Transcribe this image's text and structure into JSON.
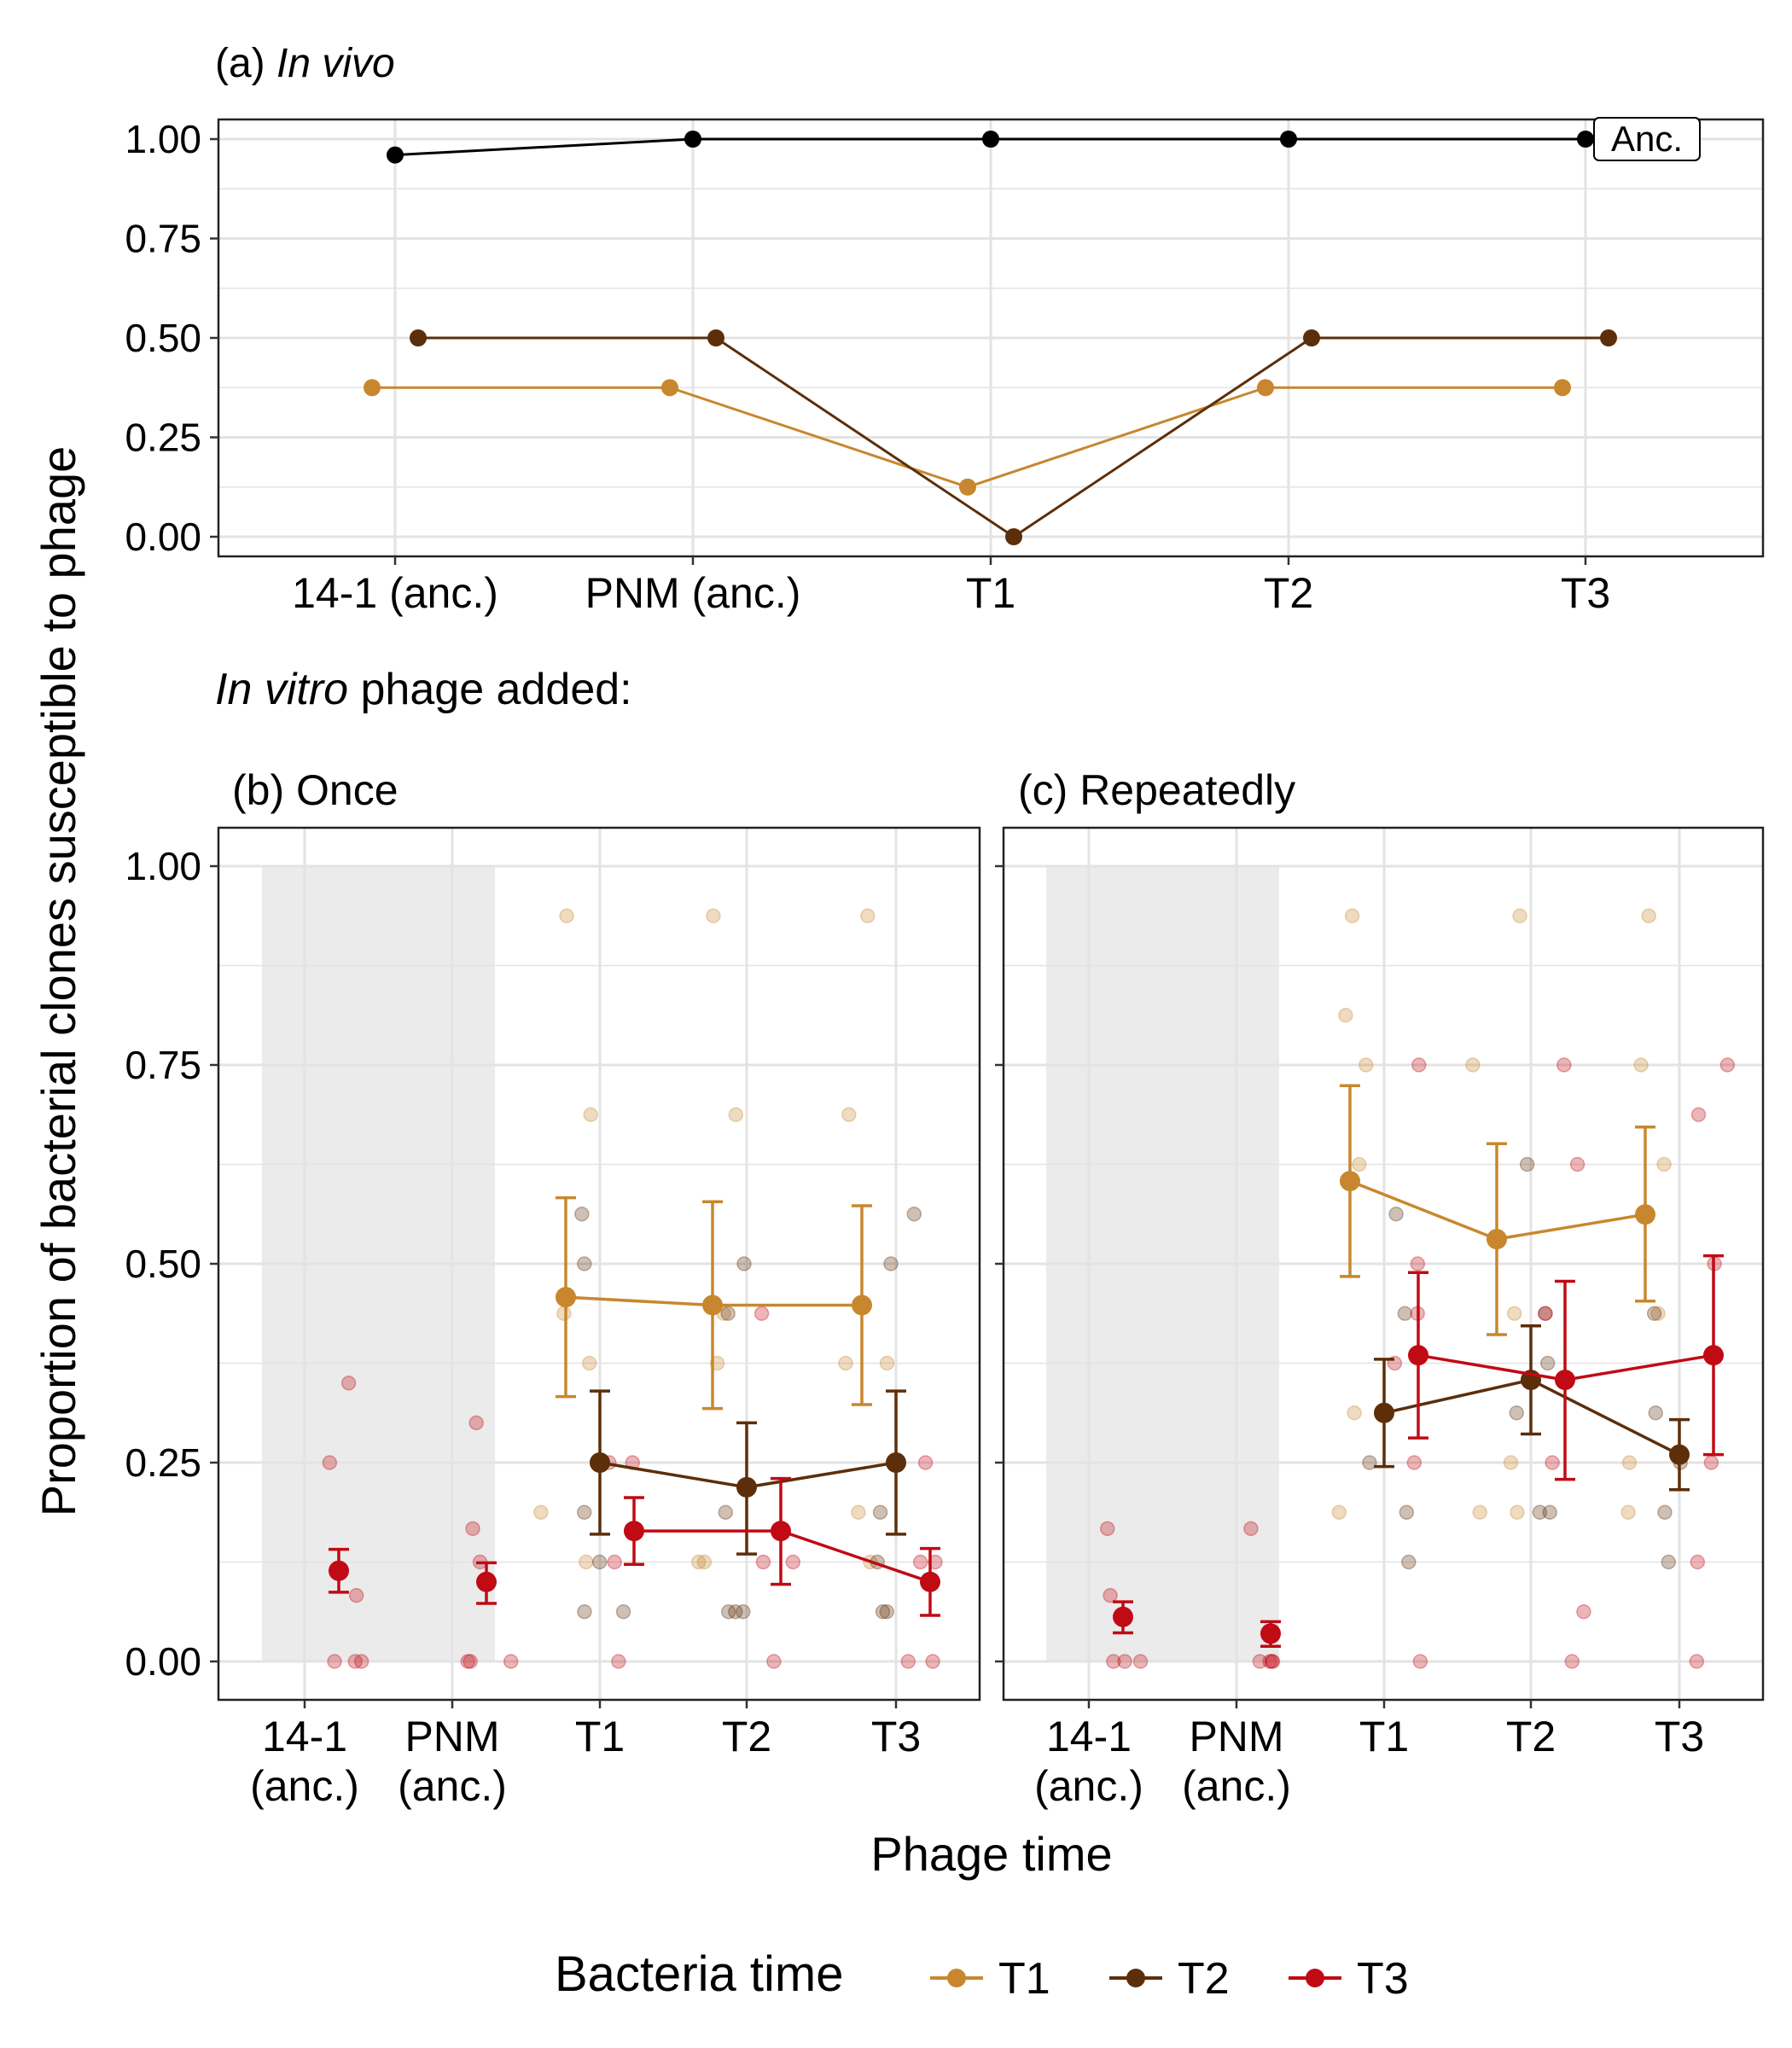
{
  "y_axis_label": "Proportion of bacterial clones susceptible to phage",
  "x_axis_label": "Phage time",
  "in_vitro_heading_italic": "In vitro",
  "in_vitro_heading_rest": " phage added:",
  "legend": {
    "title": "Bacteria time",
    "items": [
      {
        "label": "T1",
        "color": "#C8872E"
      },
      {
        "label": "T2",
        "color": "#5C2E0A"
      },
      {
        "label": "T3",
        "color": "#C00A14"
      }
    ]
  },
  "colors": {
    "anc": "#000000",
    "T1": "#C8872E",
    "T2": "#5C2E0A",
    "T3": "#C00A14",
    "shade": "#EBEBEB",
    "grid": "#E3E3E3"
  },
  "chart_data": [
    {
      "panel": "a",
      "type": "line",
      "title_prefix": "(a) ",
      "title_italic": "In vivo",
      "categories": [
        "14-1 (anc.)",
        "PNM (anc.)",
        "T1",
        "T2",
        "T3"
      ],
      "ylim": [
        0,
        1
      ],
      "yticks": [
        "0.00",
        "0.25",
        "0.50",
        "0.75",
        "1.00"
      ],
      "series": [
        {
          "key": "anc",
          "values": [
            0.96,
            1.0,
            1.0,
            1.0,
            1.0
          ],
          "end_label": "Anc."
        },
        {
          "key": "T1",
          "values": [
            0.375,
            0.375,
            0.125,
            0.375,
            0.375
          ]
        },
        {
          "key": "T2",
          "values": [
            0.5,
            0.5,
            0.0,
            0.5,
            0.5
          ]
        }
      ]
    },
    {
      "panel": "b",
      "type": "line",
      "title": "(b) Once",
      "categories": [
        "14-1\n(anc.)",
        "PNM\n(anc.)",
        "T1",
        "T2",
        "T3"
      ],
      "shaded_categories": [
        0,
        1
      ],
      "ylim": [
        0,
        1
      ],
      "yticks": [
        "0.00",
        "0.25",
        "0.50",
        "0.75",
        "1.00"
      ],
      "series": [
        {
          "key": "T1",
          "means": [
            null,
            null,
            0.458,
            0.448,
            0.448
          ],
          "lower": [
            null,
            null,
            0.333,
            0.318,
            0.323
          ],
          "upper": [
            null,
            null,
            0.583,
            0.578,
            0.573
          ],
          "points": [
            [],
            [],
            [
              0.9375,
              0.6875,
              0.4375,
              0.375,
              0.1875,
              0.125
            ],
            [
              0.9375,
              0.6875,
              0.4375,
              0.375,
              0.125,
              0.125
            ],
            [
              0.9375,
              0.6875,
              0.375,
              0.375,
              0.1875,
              0.125
            ]
          ]
        },
        {
          "key": "T2",
          "means": [
            null,
            null,
            0.25,
            0.219,
            0.25
          ],
          "lower": [
            null,
            null,
            0.16,
            0.135,
            0.16
          ],
          "upper": [
            null,
            null,
            0.34,
            0.3,
            0.34
          ],
          "points": [
            [],
            [],
            [
              0.5625,
              0.5,
              0.1875,
              0.125,
              0.0625,
              0.0625
            ],
            [
              0.5,
              0.4375,
              0.1875,
              0.0625,
              0.0625,
              0.0625
            ],
            [
              0.5625,
              0.5,
              0.1875,
              0.125,
              0.0625,
              0.0625
            ]
          ]
        },
        {
          "key": "T3",
          "means": [
            0.114,
            0.1,
            0.164,
            0.164,
            0.1
          ],
          "lower": [
            0.087,
            0.073,
            0.122,
            0.097,
            0.058
          ],
          "upper": [
            0.141,
            0.124,
            0.206,
            0.23,
            0.142
          ],
          "points": [
            [
              0.35,
              0.25,
              0.083,
              0.0,
              0.0,
              0.0
            ],
            [
              0.3,
              0.167,
              0.125,
              0.0,
              0.0,
              0.0
            ],
            [
              0.25,
              0.25,
              0.125,
              0.0
            ],
            [
              0.4375,
              0.125,
              0.125,
              0.0
            ],
            [
              0.25,
              0.125,
              0.125,
              0.0,
              0.0
            ]
          ]
        }
      ]
    },
    {
      "panel": "c",
      "type": "line",
      "title": "(c) Repeatedly",
      "categories": [
        "14-1\n(anc.)",
        "PNM\n(anc.)",
        "T1",
        "T2",
        "T3"
      ],
      "shaded_categories": [
        0,
        1
      ],
      "ylim": [
        0,
        1
      ],
      "series": [
        {
          "key": "T1",
          "means": [
            null,
            null,
            0.604,
            0.531,
            0.562
          ],
          "lower": [
            null,
            null,
            0.484,
            0.411,
            0.453
          ],
          "upper": [
            null,
            null,
            0.724,
            0.651,
            0.672
          ],
          "points": [
            [],
            [],
            [
              0.9375,
              0.8125,
              0.75,
              0.625,
              0.3125,
              0.1875
            ],
            [
              0.9375,
              0.75,
              0.4375,
              0.25,
              0.1875,
              0.1875
            ],
            [
              0.9375,
              0.75,
              0.625,
              0.4375,
              0.25,
              0.1875
            ]
          ]
        },
        {
          "key": "T2",
          "means": [
            null,
            null,
            0.3125,
            0.354,
            0.26
          ],
          "lower": [
            null,
            null,
            0.245,
            0.286,
            0.216
          ],
          "upper": [
            null,
            null,
            0.38,
            0.422,
            0.304
          ],
          "points": [
            [],
            [],
            [
              0.5625,
              0.4375,
              0.25,
              0.1875,
              0.125
            ],
            [
              0.625,
              0.4375,
              0.375,
              0.3125,
              0.1875,
              0.1875
            ],
            [
              0.4375,
              0.3125,
              0.25,
              0.1875,
              0.125
            ]
          ]
        },
        {
          "key": "T3",
          "means": [
            0.056,
            0.035,
            0.385,
            0.354,
            0.385
          ],
          "lower": [
            0.036,
            0.019,
            0.281,
            0.229,
            0.26
          ],
          "upper": [
            0.075,
            0.05,
            0.489,
            0.478,
            0.51
          ],
          "points": [
            [
              0.167,
              0.083,
              0.0,
              0.0,
              0.0
            ],
            [
              0.167,
              0.0,
              0.0,
              0.0,
              0.0
            ],
            [
              0.75,
              0.5,
              0.4375,
              0.375,
              0.25,
              0.0
            ],
            [
              0.75,
              0.625,
              0.4375,
              0.25,
              0.0625,
              0.0
            ],
            [
              0.75,
              0.6875,
              0.5,
              0.25,
              0.125,
              0.0
            ]
          ]
        }
      ]
    }
  ]
}
